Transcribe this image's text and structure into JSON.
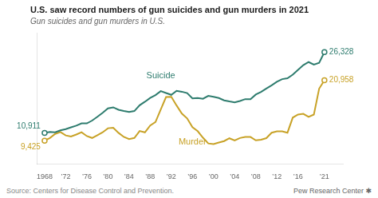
{
  "chart_data": {
    "type": "line",
    "title": "U.S. saw record numbers of gun suicides and gun murders in 2021",
    "subtitle": "Gun suicides and gun murders in U.S.",
    "source": "Source: Centers for Disease Control and Prevention.",
    "credit": "Pew Research Center  ✱",
    "x": [
      1968,
      1969,
      1970,
      1971,
      1972,
      1973,
      1974,
      1975,
      1976,
      1977,
      1978,
      1979,
      1980,
      1981,
      1982,
      1983,
      1984,
      1985,
      1986,
      1987,
      1988,
      1989,
      1990,
      1991,
      1992,
      1993,
      1994,
      1995,
      1996,
      1997,
      1998,
      1999,
      2000,
      2001,
      2002,
      2003,
      2004,
      2005,
      2006,
      2007,
      2008,
      2009,
      2010,
      2011,
      2012,
      2013,
      2014,
      2015,
      2016,
      2017,
      2018,
      2019,
      2020,
      2021
    ],
    "series": [
      {
        "color": "#2e7c6e",
        "values": [
          10911,
          11072,
          11006,
          11386,
          11631,
          11973,
          12282,
          12718,
          12726,
          13259,
          13989,
          14760,
          15584,
          15786,
          15328,
          15085,
          14886,
          15082,
          16185,
          16852,
          17594,
          18126,
          18885,
          18526,
          18169,
          18940,
          18765,
          18503,
          17491,
          17566,
          17424,
          17985,
          17783,
          17557,
          17108,
          16907,
          16750,
          17002,
          17352,
          17352,
          18223,
          18735,
          19392,
          19990,
          20666,
          21175,
          21334,
          22018,
          22938,
          23854,
          24432,
          23941,
          24292,
          26328
        ]
      },
      {
        "color": "#c8a227",
        "values": [
          9425,
          9939,
          10710,
          11071,
          10420,
          10227,
          10595,
          11040,
          10299,
          9940,
          10469,
          11026,
          11799,
          11899,
          10912,
          10143,
          9739,
          9931,
          11271,
          11010,
          12327,
          12973,
          15377,
          17746,
          17790,
          16136,
          14592,
          13673,
          12006,
          11231,
          9982,
          8897,
          8776,
          9081,
          9344,
          9877,
          9451,
          9929,
          10128,
          10129,
          9484,
          9602,
          9903,
          10945,
          11208,
          11208,
          10945,
          13827,
          14415,
          14542,
          13958,
          14414,
          19350,
          20958
        ]
      }
    ],
    "annotations": [
      {
        "text": "10,911",
        "x": 1968,
        "y": 10911,
        "color": "#2e7c6e"
      },
      {
        "text": "9,425",
        "x": 1968,
        "y": 9425,
        "color": "#c8a227"
      },
      {
        "text": "26,328",
        "x": 2021,
        "y": 26328,
        "color": "#2e7c6e"
      },
      {
        "text": "20,958",
        "x": 2021,
        "y": 20958,
        "color": "#c8a227"
      },
      {
        "text": "Suicide",
        "x": 1990,
        "y": 21000,
        "color": "#2e7c6e"
      },
      {
        "text": "Murder",
        "x": 1996,
        "y": 10000,
        "color": "#c8a227"
      }
    ],
    "xlim": [
      1966.5,
      2024.5
    ],
    "ylim": [
      5000,
      30000
    ],
    "xticks": [
      1968,
      {
        "value": 1972,
        "label": "’72"
      },
      {
        "value": 1976,
        "label": "’76"
      },
      {
        "value": 1980,
        "label": "’80"
      },
      {
        "value": 1984,
        "label": "’84"
      },
      {
        "value": 1988,
        "label": "’88"
      },
      {
        "value": 1992,
        "label": "’92"
      },
      {
        "value": 1996,
        "label": "’96"
      },
      {
        "value": 2000,
        "label": "’00"
      },
      {
        "value": 2004,
        "label": "’04"
      },
      {
        "value": 2008,
        "label": "’08"
      },
      {
        "value": 2012,
        "label": "’12"
      },
      {
        "value": 2016,
        "label": "’16"
      },
      {
        "value": 2021,
        "label": "’21"
      }
    ],
    "grid": false,
    "tick_labels": "x"
  }
}
